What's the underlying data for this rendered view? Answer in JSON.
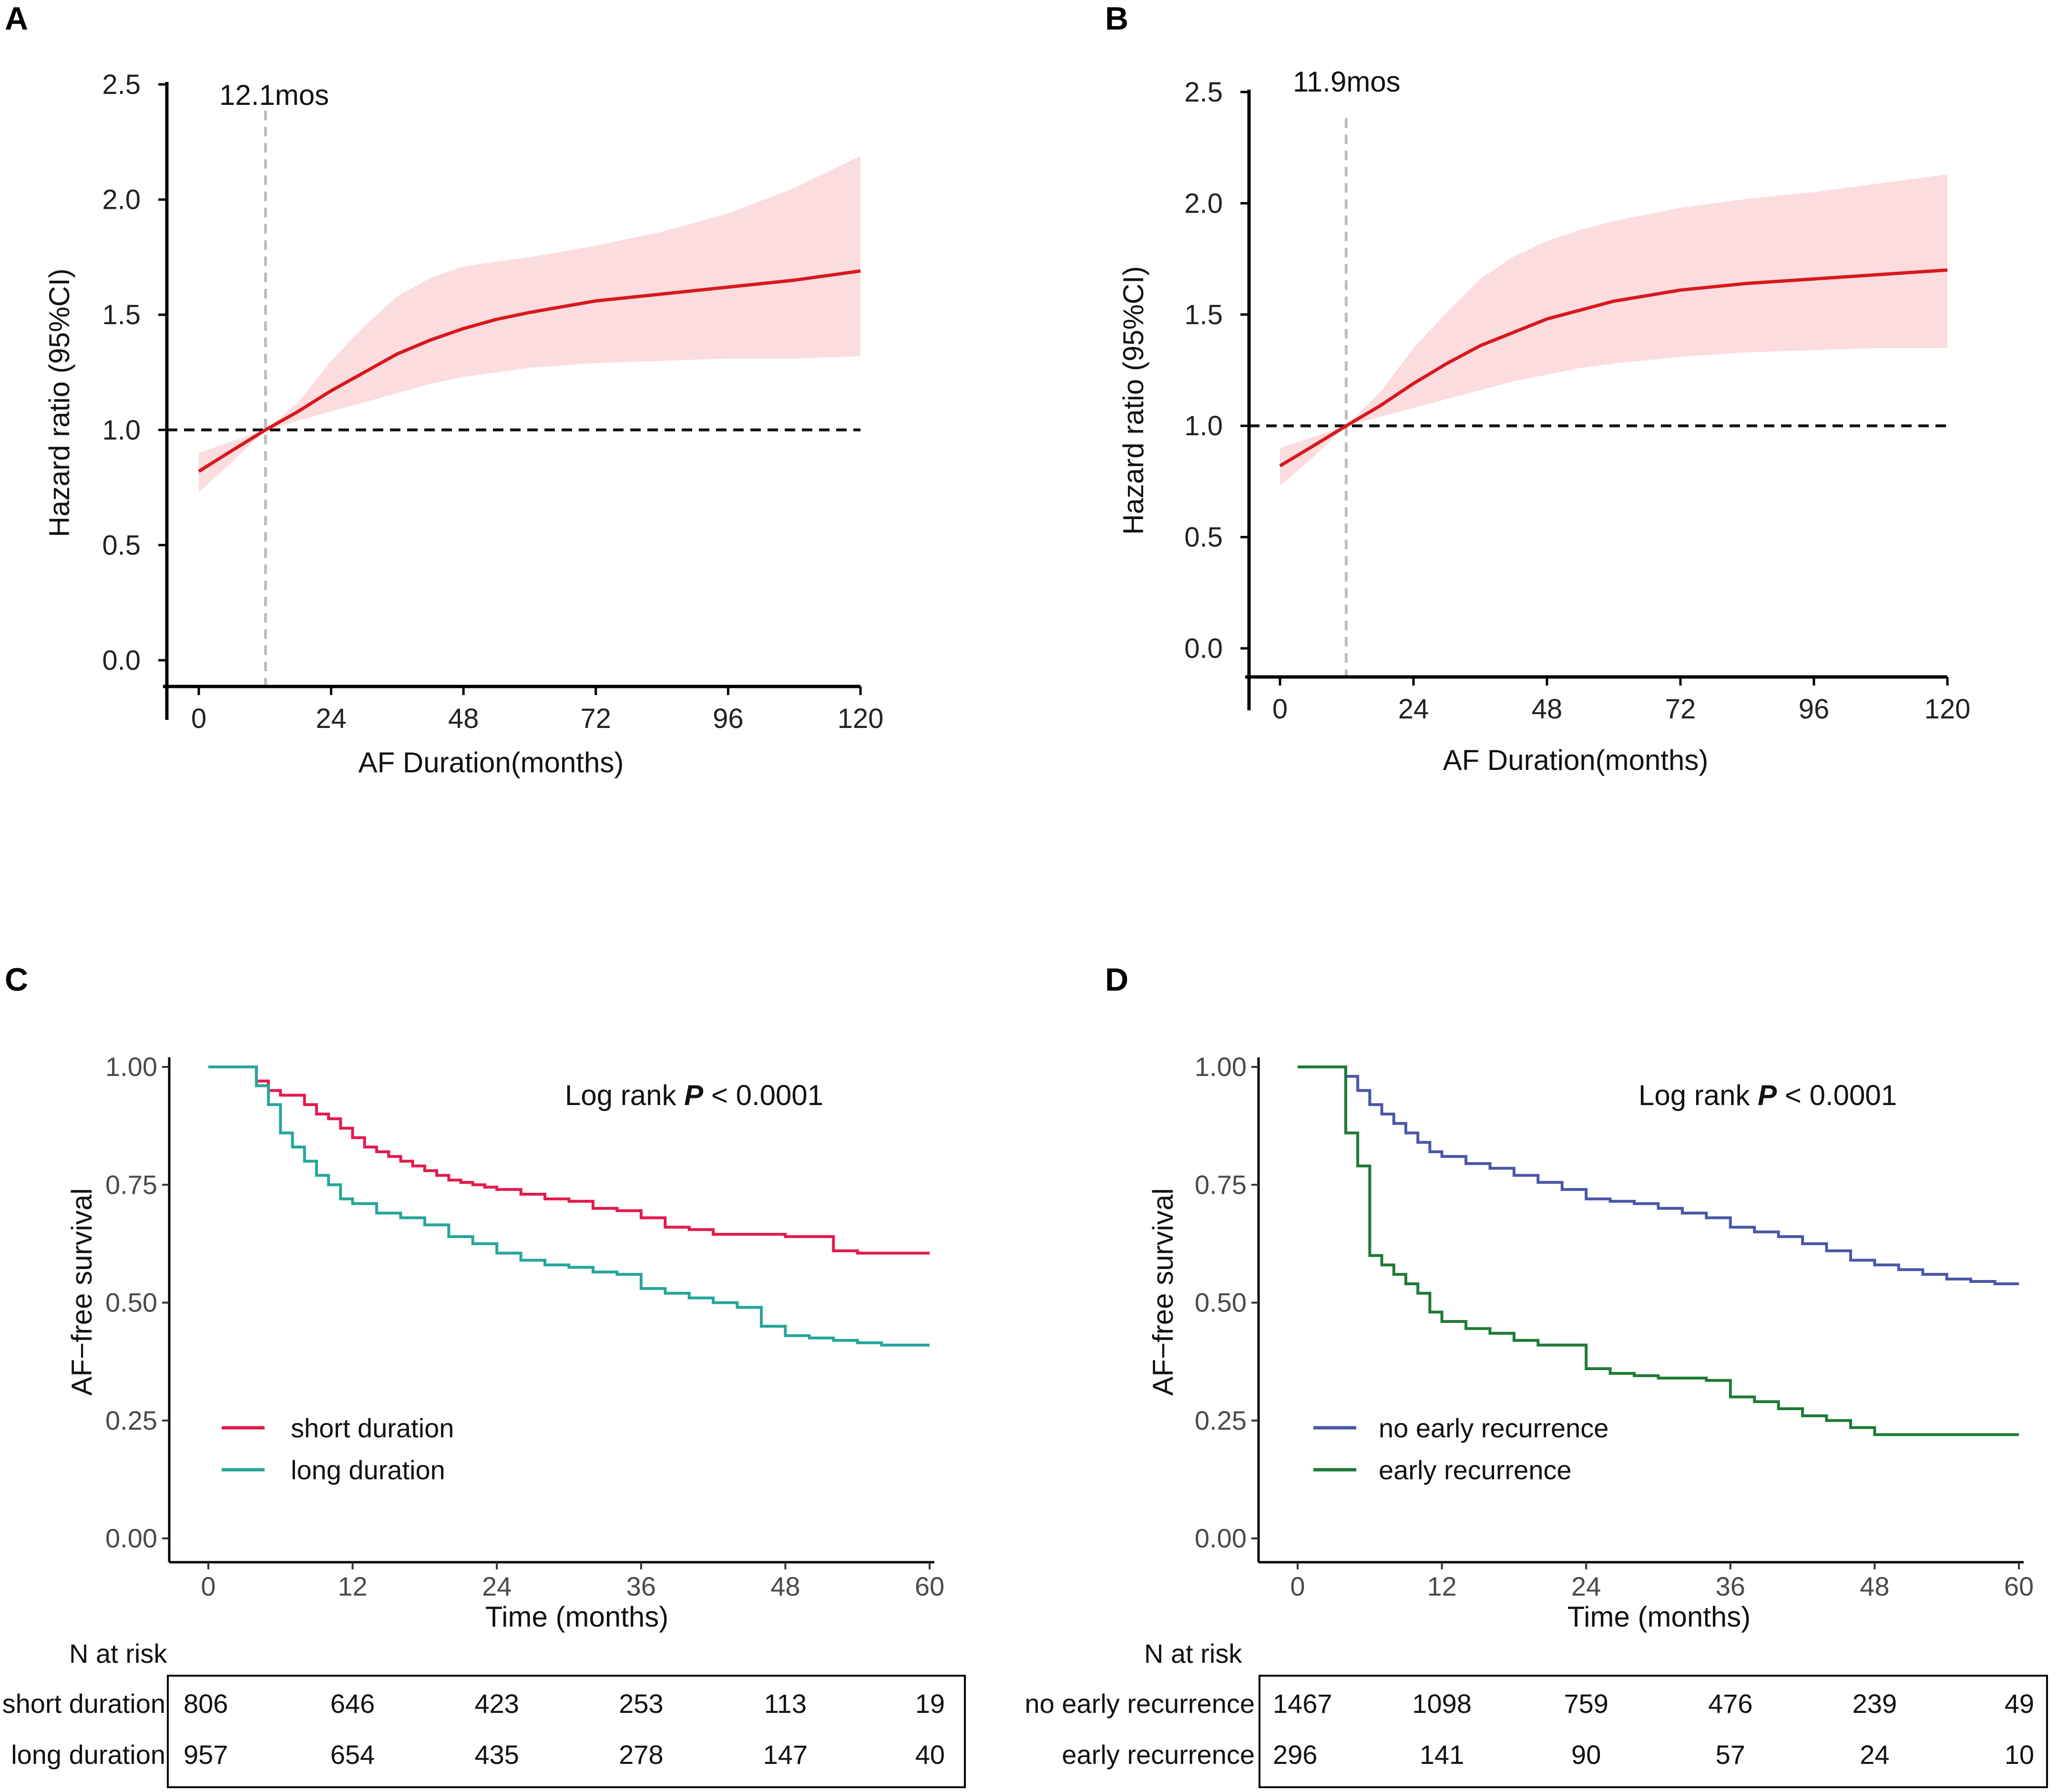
{
  "panels": [
    {
      "id": "A",
      "label": "A",
      "chart_data": {
        "type": "line",
        "title": "",
        "xlabel": "AF Duration(months)",
        "ylabel": "Hazard ratio (95%CI)",
        "xlim": [
          0,
          120
        ],
        "ylim": [
          0,
          2.5
        ],
        "xticks": [
          0,
          24,
          48,
          72,
          96,
          120
        ],
        "xtick_labels": [
          "0",
          "24",
          "48",
          "72",
          "96",
          "120"
        ],
        "yticks": [
          0,
          0.5,
          1,
          1.5,
          2,
          2.5
        ],
        "ytick_labels": [
          "0.0",
          "0.5",
          "1.0",
          "1.5",
          "2.0",
          "2.5"
        ],
        "reference_line_y": 1.0,
        "cutoff_x": 12.1,
        "cutoff_label": "12.1mos",
        "series": [
          {
            "name": "Hazard ratio",
            "color": "#d7191c",
            "x": [
              0,
              6,
              12.1,
              18,
              24,
              30,
              36,
              42,
              48,
              54,
              60,
              72,
              84,
              96,
              108,
              120
            ],
            "y": [
              0.82,
              0.91,
              1.0,
              1.08,
              1.17,
              1.25,
              1.33,
              1.39,
              1.44,
              1.48,
              1.51,
              1.56,
              1.59,
              1.62,
              1.65,
              1.69
            ]
          },
          {
            "name": "95% CI upper",
            "color": "#fbdcdf",
            "x": [
              0,
              6,
              12.1,
              18,
              24,
              30,
              36,
              42,
              48,
              54,
              60,
              72,
              84,
              96,
              108,
              120
            ],
            "y": [
              0.9,
              0.95,
              1.0,
              1.12,
              1.3,
              1.45,
              1.58,
              1.66,
              1.71,
              1.73,
              1.75,
              1.8,
              1.86,
              1.94,
              2.05,
              2.19
            ]
          },
          {
            "name": "95% CI lower",
            "color": "#fbdcdf",
            "x": [
              0,
              6,
              12.1,
              18,
              24,
              30,
              36,
              42,
              48,
              54,
              60,
              72,
              84,
              96,
              108,
              120
            ],
            "y": [
              0.73,
              0.86,
              1.0,
              1.04,
              1.08,
              1.12,
              1.16,
              1.2,
              1.23,
              1.25,
              1.27,
              1.29,
              1.3,
              1.31,
              1.31,
              1.32
            ]
          }
        ]
      }
    },
    {
      "id": "B",
      "label": "B",
      "chart_data": {
        "type": "line",
        "title": "",
        "xlabel": "AF Duration(months)",
        "ylabel": "Hazard ratio (95%CI)",
        "xlim": [
          0,
          120
        ],
        "ylim": [
          0,
          2.5
        ],
        "xticks": [
          0,
          24,
          48,
          72,
          96,
          120
        ],
        "xtick_labels": [
          "0",
          "24",
          "48",
          "72",
          "96",
          "120"
        ],
        "yticks": [
          0,
          0.5,
          1,
          1.5,
          2,
          2.5
        ],
        "ytick_labels": [
          "0.0",
          "0.5",
          "1.0",
          "1.5",
          "2.0",
          "2.5"
        ],
        "reference_line_y": 1.0,
        "cutoff_x": 11.9,
        "cutoff_label": "11.9mos",
        "series": [
          {
            "name": "Hazard ratio",
            "color": "#d7191c",
            "x": [
              0,
              6,
              11.9,
              18,
              24,
              30,
              36,
              42,
              48,
              54,
              60,
              72,
              84,
              96,
              108,
              120
            ],
            "y": [
              0.82,
              0.91,
              1.0,
              1.09,
              1.19,
              1.28,
              1.36,
              1.42,
              1.48,
              1.52,
              1.56,
              1.61,
              1.64,
              1.66,
              1.68,
              1.7
            ]
          },
          {
            "name": "95% CI upper",
            "color": "#fbdcdf",
            "x": [
              0,
              6,
              11.9,
              18,
              24,
              30,
              36,
              42,
              48,
              54,
              60,
              72,
              84,
              96,
              108,
              120
            ],
            "y": [
              0.9,
              0.95,
              1.0,
              1.15,
              1.35,
              1.51,
              1.66,
              1.76,
              1.83,
              1.88,
              1.92,
              1.98,
              2.02,
              2.05,
              2.09,
              2.13
            ]
          },
          {
            "name": "95% CI lower",
            "color": "#fbdcdf",
            "x": [
              0,
              6,
              11.9,
              18,
              24,
              30,
              36,
              42,
              48,
              54,
              60,
              72,
              84,
              96,
              108,
              120
            ],
            "y": [
              0.73,
              0.86,
              1.0,
              1.04,
              1.08,
              1.12,
              1.16,
              1.2,
              1.23,
              1.26,
              1.28,
              1.31,
              1.33,
              1.34,
              1.35,
              1.35
            ]
          }
        ]
      }
    },
    {
      "id": "C",
      "label": "C",
      "chart_data": {
        "type": "line",
        "title": "",
        "xlabel": "Time (months)",
        "ylabel": "AF−free survival",
        "xlim": [
          0,
          60
        ],
        "ylim": [
          0,
          1
        ],
        "xticks": [
          0,
          12,
          24,
          36,
          48,
          60
        ],
        "xtick_labels": [
          "0",
          "12",
          "24",
          "36",
          "48",
          "60"
        ],
        "yticks": [
          0,
          0.25,
          0.5,
          0.75,
          1
        ],
        "ytick_labels": [
          "0.00",
          "0.25",
          "0.50",
          "0.75",
          "1.00"
        ],
        "annotation": {
          "prefix": "Log rank ",
          "p": "P",
          "suffix": " < 0.0001"
        },
        "risk_table_title": "N at risk",
        "series": [
          {
            "name": "short duration",
            "color": "#e31a4c",
            "x": [
              0,
              4,
              5,
              6,
              8,
              9,
              10,
              11,
              12,
              13,
              14,
              15,
              16,
              17,
              18,
              19,
              20,
              21,
              22,
              23,
              24,
              26,
              28,
              30,
              32,
              34,
              36,
              38,
              40,
              42,
              44,
              46,
              48,
              50,
              52,
              54,
              56,
              58,
              60
            ],
            "y": [
              1.0,
              0.97,
              0.95,
              0.94,
              0.92,
              0.9,
              0.89,
              0.87,
              0.85,
              0.83,
              0.82,
              0.81,
              0.8,
              0.79,
              0.78,
              0.77,
              0.76,
              0.755,
              0.75,
              0.745,
              0.74,
              0.73,
              0.72,
              0.715,
              0.7,
              0.695,
              0.68,
              0.66,
              0.655,
              0.645,
              0.645,
              0.645,
              0.64,
              0.64,
              0.61,
              0.605,
              0.605,
              0.605,
              0.605
            ]
          },
          {
            "name": "long duration",
            "color": "#26a69a",
            "x": [
              0,
              4,
              5,
              6,
              7,
              8,
              9,
              10,
              11,
              12,
              14,
              16,
              18,
              20,
              22,
              24,
              26,
              28,
              30,
              32,
              34,
              36,
              38,
              40,
              42,
              44,
              46,
              48,
              50,
              52,
              54,
              56,
              58,
              60
            ],
            "y": [
              1.0,
              0.96,
              0.92,
              0.86,
              0.83,
              0.8,
              0.77,
              0.75,
              0.72,
              0.71,
              0.69,
              0.68,
              0.665,
              0.64,
              0.625,
              0.605,
              0.59,
              0.58,
              0.575,
              0.565,
              0.56,
              0.53,
              0.52,
              0.51,
              0.5,
              0.49,
              0.45,
              0.43,
              0.425,
              0.42,
              0.415,
              0.41,
              0.41,
              0.41
            ]
          }
        ],
        "risk_table": {
          "times": [
            0,
            12,
            24,
            36,
            48,
            60
          ],
          "rows": [
            {
              "label": "short duration",
              "values": [
                "806",
                "646",
                "423",
                "253",
                "113",
                "19"
              ]
            },
            {
              "label": "long duration",
              "values": [
                "957",
                "654",
                "435",
                "278",
                "147",
                "40"
              ]
            }
          ]
        }
      }
    },
    {
      "id": "D",
      "label": "D",
      "chart_data": {
        "type": "line",
        "title": "",
        "xlabel": "Time (months)",
        "ylabel": "AF−free survival",
        "xlim": [
          0,
          60
        ],
        "ylim": [
          0,
          1
        ],
        "xticks": [
          0,
          12,
          24,
          36,
          48,
          60
        ],
        "xtick_labels": [
          "0",
          "12",
          "24",
          "36",
          "48",
          "60"
        ],
        "yticks": [
          0,
          0.25,
          0.5,
          0.75,
          1
        ],
        "ytick_labels": [
          "0.00",
          "0.25",
          "0.50",
          "0.75",
          "1.00"
        ],
        "annotation": {
          "prefix": "Log rank ",
          "p": "P",
          "suffix": " < 0.0001"
        },
        "risk_table_title": "N at risk",
        "series": [
          {
            "name": "no early recurrence",
            "color": "#4a57a8",
            "x": [
              0,
              4,
              5,
              6,
              7,
              8,
              9,
              10,
              11,
              12,
              14,
              16,
              18,
              20,
              22,
              24,
              26,
              28,
              30,
              32,
              34,
              36,
              38,
              40,
              42,
              44,
              46,
              48,
              50,
              52,
              54,
              56,
              58,
              60
            ],
            "y": [
              1.0,
              0.98,
              0.95,
              0.92,
              0.9,
              0.88,
              0.86,
              0.84,
              0.82,
              0.81,
              0.795,
              0.785,
              0.77,
              0.755,
              0.74,
              0.72,
              0.715,
              0.71,
              0.7,
              0.69,
              0.68,
              0.66,
              0.65,
              0.64,
              0.625,
              0.61,
              0.59,
              0.58,
              0.57,
              0.56,
              0.55,
              0.545,
              0.54,
              0.54
            ]
          },
          {
            "name": "early recurrence",
            "color": "#1e7a35",
            "x": [
              0,
              4,
              5,
              6,
              7,
              8,
              9,
              10,
              11,
              12,
              14,
              16,
              18,
              20,
              22,
              24,
              26,
              28,
              30,
              32,
              34,
              36,
              38,
              40,
              42,
              44,
              46,
              48,
              50,
              52,
              54,
              56,
              58,
              60
            ],
            "y": [
              1.0,
              0.86,
              0.79,
              0.6,
              0.58,
              0.56,
              0.54,
              0.52,
              0.48,
              0.46,
              0.445,
              0.435,
              0.42,
              0.41,
              0.41,
              0.36,
              0.35,
              0.345,
              0.34,
              0.34,
              0.335,
              0.3,
              0.29,
              0.275,
              0.26,
              0.25,
              0.235,
              0.22,
              0.22,
              0.22,
              0.22,
              0.22,
              0.22,
              0.22
            ]
          }
        ],
        "risk_table": {
          "times": [
            0,
            12,
            24,
            36,
            48,
            60
          ],
          "rows": [
            {
              "label": "no early recurrence",
              "values": [
                "1467",
                "1098",
                "759",
                "476",
                "239",
                "49"
              ]
            },
            {
              "label": "early recurrence",
              "values": [
                "296",
                "141",
                "90",
                "57",
                "24",
                "10"
              ]
            }
          ]
        }
      }
    }
  ]
}
